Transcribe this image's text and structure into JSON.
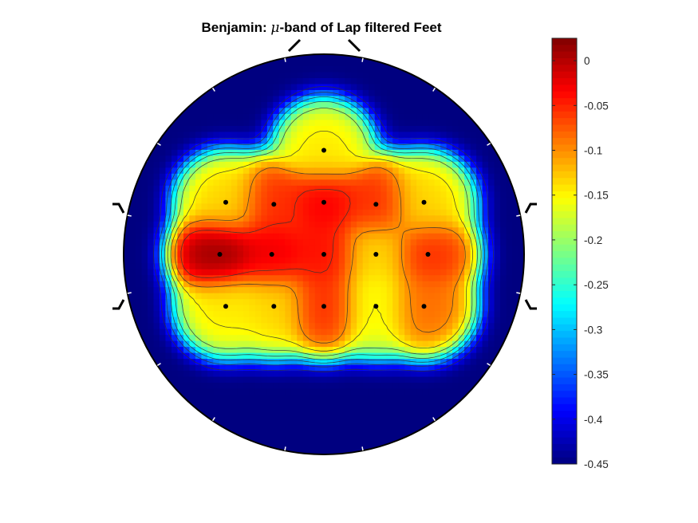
{
  "chart_data": {
    "type": "heatmap",
    "title": "Benjamin: μ-band of Lap filtered Feet",
    "title_parts": {
      "before": "Benjamin: ",
      "symbol": "μ",
      "after": "-band of Lap filtered Feet"
    },
    "colormap": "jet",
    "clim": [
      -0.45,
      0.025
    ],
    "colorbar": {
      "ticks": [
        0,
        -0.05,
        -0.1,
        -0.15,
        -0.2,
        -0.25,
        -0.3,
        -0.35,
        -0.4,
        -0.45
      ],
      "tick_labels": [
        "0",
        "-0.05",
        "-0.1",
        "-0.15",
        "-0.2",
        "-0.25",
        "-0.3",
        "-0.35",
        "-0.4",
        "-0.45"
      ],
      "placement": "right"
    },
    "electrodes": [
      {
        "x": 0.0,
        "y": 0.52,
        "value": -0.14
      },
      {
        "x": -0.49,
        "y": 0.26,
        "value": -0.13
      },
      {
        "x": -0.25,
        "y": 0.25,
        "value": -0.05
      },
      {
        "x": 0.0,
        "y": 0.26,
        "value": -0.025
      },
      {
        "x": 0.26,
        "y": 0.25,
        "value": -0.05
      },
      {
        "x": 0.5,
        "y": 0.26,
        "value": -0.13
      },
      {
        "x": -0.52,
        "y": 0.0,
        "value": 0.02
      },
      {
        "x": -0.26,
        "y": 0.0,
        "value": -0.02
      },
      {
        "x": 0.0,
        "y": 0.0,
        "value": -0.035
      },
      {
        "x": 0.26,
        "y": 0.0,
        "value": -0.13
      },
      {
        "x": 0.52,
        "y": 0.0,
        "value": -0.05
      },
      {
        "x": -0.49,
        "y": -0.26,
        "value": -0.14
      },
      {
        "x": -0.25,
        "y": -0.26,
        "value": -0.13
      },
      {
        "x": 0.0,
        "y": -0.26,
        "value": -0.05
      },
      {
        "x": 0.26,
        "y": -0.26,
        "value": -0.15
      },
      {
        "x": 0.5,
        "y": -0.26,
        "value": -0.08
      }
    ],
    "grid": false,
    "contours": true
  }
}
